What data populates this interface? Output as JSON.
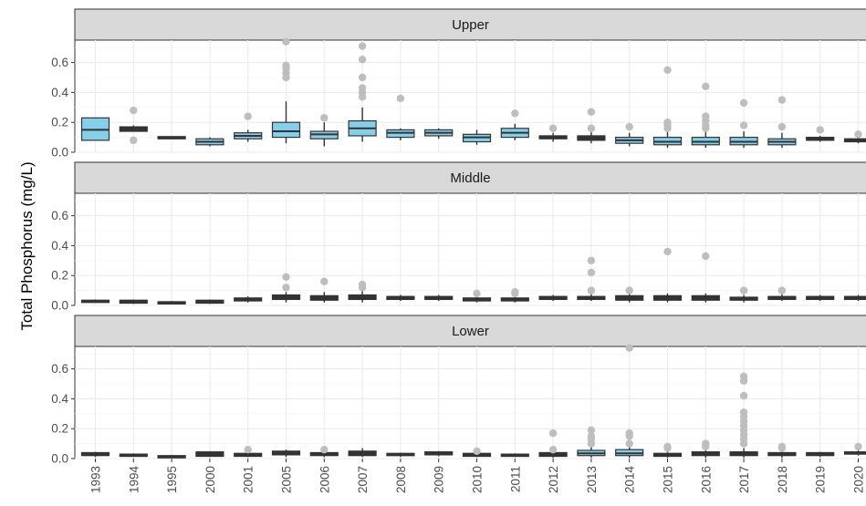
{
  "chart_data": {
    "type": "boxplot",
    "ylabel": "Total Phosphorus (mg/L)",
    "ylim": [
      0,
      0.75
    ],
    "yticks": [
      0.0,
      0.2,
      0.4,
      0.6
    ],
    "ytick_labels": [
      "0.0",
      "0.2",
      "0.4",
      "0.6"
    ],
    "categories": [
      "1993",
      "1994",
      "1995",
      "2000",
      "2001",
      "2005",
      "2006",
      "2007",
      "2008",
      "2009",
      "2010",
      "2011",
      "2012",
      "2013",
      "2014",
      "2015",
      "2016",
      "2017",
      "2018",
      "2019",
      "2020"
    ],
    "grid": true,
    "colors": {
      "box_light": "#87CEEB",
      "box_dark": "#333333",
      "outlier": "#BEBEBE",
      "strip": "#D9D9D9",
      "grid": "#EBEBEB"
    },
    "panels": [
      {
        "name": "Upper",
        "boxes": [
          {
            "q1": 0.08,
            "med": 0.15,
            "q3": 0.23,
            "lo": 0.08,
            "hi": 0.23,
            "out": []
          },
          {
            "q1": 0.14,
            "med": 0.16,
            "q3": 0.17,
            "lo": 0.14,
            "hi": 0.18,
            "out": [
              0.28,
              0.08
            ]
          },
          {
            "q1": 0.095,
            "med": 0.1,
            "q3": 0.105,
            "lo": 0.095,
            "hi": 0.105,
            "out": []
          },
          {
            "q1": 0.05,
            "med": 0.07,
            "q3": 0.09,
            "lo": 0.04,
            "hi": 0.1,
            "out": []
          },
          {
            "q1": 0.09,
            "med": 0.11,
            "q3": 0.13,
            "lo": 0.07,
            "hi": 0.15,
            "out": [
              0.24
            ]
          },
          {
            "q1": 0.1,
            "med": 0.14,
            "q3": 0.2,
            "lo": 0.06,
            "hi": 0.34,
            "out": [
              0.5,
              0.53,
              0.56,
              0.58,
              0.74
            ]
          },
          {
            "q1": 0.09,
            "med": 0.12,
            "q3": 0.14,
            "lo": 0.04,
            "hi": 0.2,
            "out": [
              0.23
            ]
          },
          {
            "q1": 0.11,
            "med": 0.16,
            "q3": 0.21,
            "lo": 0.07,
            "hi": 0.3,
            "out": [
              0.37,
              0.4,
              0.43,
              0.5,
              0.62,
              0.71
            ]
          },
          {
            "q1": 0.1,
            "med": 0.13,
            "q3": 0.15,
            "lo": 0.08,
            "hi": 0.16,
            "out": [
              0.36
            ]
          },
          {
            "q1": 0.11,
            "med": 0.13,
            "q3": 0.15,
            "lo": 0.09,
            "hi": 0.16,
            "out": []
          },
          {
            "q1": 0.07,
            "med": 0.1,
            "q3": 0.12,
            "lo": 0.05,
            "hi": 0.15,
            "out": []
          },
          {
            "q1": 0.1,
            "med": 0.13,
            "q3": 0.16,
            "lo": 0.08,
            "hi": 0.19,
            "out": [
              0.26
            ]
          },
          {
            "q1": 0.09,
            "med": 0.1,
            "q3": 0.11,
            "lo": 0.07,
            "hi": 0.13,
            "out": [
              0.16
            ]
          },
          {
            "q1": 0.08,
            "med": 0.09,
            "q3": 0.11,
            "lo": 0.06,
            "hi": 0.14,
            "out": [
              0.16,
              0.27
            ]
          },
          {
            "q1": 0.06,
            "med": 0.08,
            "q3": 0.1,
            "lo": 0.04,
            "hi": 0.13,
            "out": [
              0.17
            ]
          },
          {
            "q1": 0.05,
            "med": 0.07,
            "q3": 0.1,
            "lo": 0.03,
            "hi": 0.14,
            "out": [
              0.16,
              0.18,
              0.2,
              0.55
            ]
          },
          {
            "q1": 0.05,
            "med": 0.07,
            "q3": 0.1,
            "lo": 0.03,
            "hi": 0.14,
            "out": [
              0.16,
              0.18,
              0.21,
              0.24,
              0.44
            ]
          },
          {
            "q1": 0.05,
            "med": 0.07,
            "q3": 0.1,
            "lo": 0.03,
            "hi": 0.14,
            "out": [
              0.18,
              0.33
            ]
          },
          {
            "q1": 0.05,
            "med": 0.07,
            "q3": 0.09,
            "lo": 0.03,
            "hi": 0.13,
            "out": [
              0.17,
              0.35
            ]
          },
          {
            "q1": 0.08,
            "med": 0.09,
            "q3": 0.1,
            "lo": 0.07,
            "hi": 0.11,
            "out": [
              0.15
            ]
          },
          {
            "q1": 0.07,
            "med": 0.08,
            "q3": 0.09,
            "lo": 0.06,
            "hi": 0.1,
            "out": [
              0.12
            ]
          }
        ]
      },
      {
        "name": "Middle",
        "boxes": [
          {
            "q1": 0.025,
            "med": 0.03,
            "q3": 0.035,
            "lo": 0.02,
            "hi": 0.04,
            "out": []
          },
          {
            "q1": 0.015,
            "med": 0.025,
            "q3": 0.035,
            "lo": 0.01,
            "hi": 0.04,
            "out": []
          },
          {
            "q1": 0.015,
            "med": 0.02,
            "q3": 0.025,
            "lo": 0.01,
            "hi": 0.03,
            "out": []
          },
          {
            "q1": 0.015,
            "med": 0.025,
            "q3": 0.035,
            "lo": 0.01,
            "hi": 0.04,
            "out": []
          },
          {
            "q1": 0.03,
            "med": 0.04,
            "q3": 0.05,
            "lo": 0.02,
            "hi": 0.06,
            "out": []
          },
          {
            "q1": 0.04,
            "med": 0.06,
            "q3": 0.07,
            "lo": 0.02,
            "hi": 0.09,
            "out": [
              0.12,
              0.19
            ]
          },
          {
            "q1": 0.035,
            "med": 0.05,
            "q3": 0.065,
            "lo": 0.02,
            "hi": 0.09,
            "out": [
              0.16
            ]
          },
          {
            "q1": 0.04,
            "med": 0.06,
            "q3": 0.07,
            "lo": 0.02,
            "hi": 0.1,
            "out": [
              0.12,
              0.14
            ]
          },
          {
            "q1": 0.04,
            "med": 0.05,
            "q3": 0.06,
            "lo": 0.03,
            "hi": 0.07,
            "out": []
          },
          {
            "q1": 0.04,
            "med": 0.05,
            "q3": 0.06,
            "lo": 0.03,
            "hi": 0.07,
            "out": []
          },
          {
            "q1": 0.03,
            "med": 0.04,
            "q3": 0.05,
            "lo": 0.02,
            "hi": 0.06,
            "out": [
              0.08
            ]
          },
          {
            "q1": 0.03,
            "med": 0.04,
            "q3": 0.05,
            "lo": 0.02,
            "hi": 0.06,
            "out": [
              0.08,
              0.09
            ]
          },
          {
            "q1": 0.04,
            "med": 0.05,
            "q3": 0.06,
            "lo": 0.03,
            "hi": 0.07,
            "out": []
          },
          {
            "q1": 0.04,
            "med": 0.05,
            "q3": 0.06,
            "lo": 0.03,
            "hi": 0.08,
            "out": [
              0.1,
              0.22,
              0.3
            ]
          },
          {
            "q1": 0.035,
            "med": 0.05,
            "q3": 0.065,
            "lo": 0.02,
            "hi": 0.08,
            "out": [
              0.1
            ]
          },
          {
            "q1": 0.035,
            "med": 0.05,
            "q3": 0.065,
            "lo": 0.02,
            "hi": 0.08,
            "out": [
              0.36
            ]
          },
          {
            "q1": 0.035,
            "med": 0.05,
            "q3": 0.065,
            "lo": 0.02,
            "hi": 0.08,
            "out": [
              0.33
            ]
          },
          {
            "q1": 0.035,
            "med": 0.045,
            "q3": 0.055,
            "lo": 0.02,
            "hi": 0.07,
            "out": [
              0.1
            ]
          },
          {
            "q1": 0.04,
            "med": 0.05,
            "q3": 0.06,
            "lo": 0.03,
            "hi": 0.08,
            "out": [
              0.1
            ]
          },
          {
            "q1": 0.04,
            "med": 0.05,
            "q3": 0.06,
            "lo": 0.03,
            "hi": 0.07,
            "out": []
          },
          {
            "q1": 0.04,
            "med": 0.05,
            "q3": 0.06,
            "lo": 0.03,
            "hi": 0.07,
            "out": []
          }
        ]
      },
      {
        "name": "Lower",
        "boxes": [
          {
            "q1": 0.02,
            "med": 0.03,
            "q3": 0.04,
            "lo": 0.01,
            "hi": 0.045,
            "out": []
          },
          {
            "q1": 0.015,
            "med": 0.02,
            "q3": 0.03,
            "lo": 0.01,
            "hi": 0.035,
            "out": []
          },
          {
            "q1": 0.01,
            "med": 0.015,
            "q3": 0.02,
            "lo": 0.005,
            "hi": 0.025,
            "out": []
          },
          {
            "q1": 0.015,
            "med": 0.03,
            "q3": 0.045,
            "lo": 0.01,
            "hi": 0.05,
            "out": []
          },
          {
            "q1": 0.015,
            "med": 0.025,
            "q3": 0.035,
            "lo": 0.01,
            "hi": 0.045,
            "out": [
              0.06
            ]
          },
          {
            "q1": 0.025,
            "med": 0.04,
            "q3": 0.05,
            "lo": 0.01,
            "hi": 0.06,
            "out": []
          },
          {
            "q1": 0.02,
            "med": 0.03,
            "q3": 0.04,
            "lo": 0.01,
            "hi": 0.05,
            "out": [
              0.06
            ]
          },
          {
            "q1": 0.02,
            "med": 0.035,
            "q3": 0.05,
            "lo": 0.01,
            "hi": 0.07,
            "out": []
          },
          {
            "q1": 0.02,
            "med": 0.03,
            "q3": 0.035,
            "lo": 0.01,
            "hi": 0.04,
            "out": []
          },
          {
            "q1": 0.025,
            "med": 0.035,
            "q3": 0.045,
            "lo": 0.015,
            "hi": 0.05,
            "out": []
          },
          {
            "q1": 0.015,
            "med": 0.025,
            "q3": 0.035,
            "lo": 0.01,
            "hi": 0.04,
            "out": [
              0.05
            ]
          },
          {
            "q1": 0.015,
            "med": 0.02,
            "q3": 0.03,
            "lo": 0.01,
            "hi": 0.035,
            "out": []
          },
          {
            "q1": 0.015,
            "med": 0.025,
            "q3": 0.04,
            "lo": 0.005,
            "hi": 0.05,
            "out": [
              0.06,
              0.17
            ]
          },
          {
            "q1": 0.02,
            "med": 0.035,
            "q3": 0.055,
            "lo": 0.005,
            "hi": 0.08,
            "out": [
              0.1,
              0.13,
              0.15,
              0.19
            ]
          },
          {
            "q1": 0.02,
            "med": 0.035,
            "q3": 0.06,
            "lo": 0.005,
            "hi": 0.09,
            "out": [
              0.1,
              0.15,
              0.17,
              0.74
            ]
          },
          {
            "q1": 0.015,
            "med": 0.025,
            "q3": 0.035,
            "lo": 0.005,
            "hi": 0.05,
            "out": [
              0.07,
              0.08
            ]
          },
          {
            "q1": 0.02,
            "med": 0.03,
            "q3": 0.045,
            "lo": 0.005,
            "hi": 0.06,
            "out": [
              0.08,
              0.1
            ]
          },
          {
            "q1": 0.02,
            "med": 0.03,
            "q3": 0.045,
            "lo": 0.005,
            "hi": 0.07,
            "out": [
              0.1,
              0.13,
              0.16,
              0.19,
              0.22,
              0.25,
              0.28,
              0.31,
              0.42,
              0.52,
              0.55
            ]
          },
          {
            "q1": 0.02,
            "med": 0.03,
            "q3": 0.04,
            "lo": 0.005,
            "hi": 0.05,
            "out": [
              0.07,
              0.08
            ]
          },
          {
            "q1": 0.02,
            "med": 0.03,
            "q3": 0.04,
            "lo": 0.01,
            "hi": 0.045,
            "out": []
          },
          {
            "q1": 0.03,
            "med": 0.04,
            "q3": 0.045,
            "lo": 0.02,
            "hi": 0.06,
            "out": [
              0.08
            ]
          }
        ]
      }
    ]
  }
}
